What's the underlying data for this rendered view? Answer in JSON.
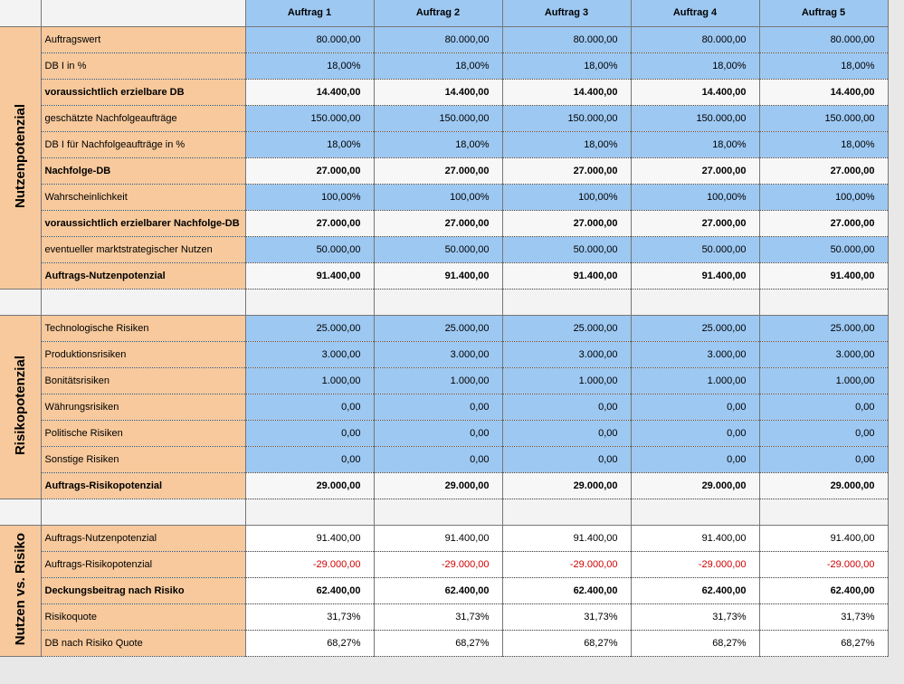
{
  "header": {
    "columns": [
      "Auftrag 1",
      "Auftrag 2",
      "Auftrag 3",
      "Auftrag 4",
      "Auftrag 5"
    ],
    "fill": "#9dc8f2"
  },
  "sections": [
    {
      "title": "Nutzenpotenzial",
      "rows": [
        {
          "label": "Auftragswert",
          "values": [
            "80.000,00",
            "80.000,00",
            "80.000,00",
            "80.000,00",
            "80.000,00"
          ],
          "fill": "#9dc8f2"
        },
        {
          "label": "DB I in %",
          "values": [
            "18,00%",
            "18,00%",
            "18,00%",
            "18,00%",
            "18,00%"
          ],
          "fill": "#9dc8f2"
        },
        {
          "label": "voraussichtlich erzielbare DB",
          "values": [
            "14.400,00",
            "14.400,00",
            "14.400,00",
            "14.400,00",
            "14.400,00"
          ],
          "fill": "#f7f7f7",
          "bold": true
        },
        {
          "label": "geschätzte Nachfolgeaufträge",
          "values": [
            "150.000,00",
            "150.000,00",
            "150.000,00",
            "150.000,00",
            "150.000,00"
          ],
          "fill": "#9dc8f2"
        },
        {
          "label": "DB I für Nachfolgeaufträge in %",
          "values": [
            "18,00%",
            "18,00%",
            "18,00%",
            "18,00%",
            "18,00%"
          ],
          "fill": "#9dc8f2"
        },
        {
          "label": "Nachfolge-DB",
          "values": [
            "27.000,00",
            "27.000,00",
            "27.000,00",
            "27.000,00",
            "27.000,00"
          ],
          "fill": "#f7f7f7",
          "bold": true
        },
        {
          "label": "Wahrscheinlichkeit",
          "values": [
            "100,00%",
            "100,00%",
            "100,00%",
            "100,00%",
            "100,00%"
          ],
          "fill": "#9dc8f2"
        },
        {
          "label": "voraussichtlich erzielbarer Nachfolge-DB",
          "values": [
            "27.000,00",
            "27.000,00",
            "27.000,00",
            "27.000,00",
            "27.000,00"
          ],
          "fill": "#f7f7f7",
          "bold": true
        },
        {
          "label": "eventueller marktstrategischer Nutzen",
          "values": [
            "50.000,00",
            "50.000,00",
            "50.000,00",
            "50.000,00",
            "50.000,00"
          ],
          "fill": "#9dc8f2"
        },
        {
          "label": "Auftrags-Nutzenpotenzial",
          "values": [
            "91.400,00",
            "91.400,00",
            "91.400,00",
            "91.400,00",
            "91.400,00"
          ],
          "fill": "#f7f7f7",
          "bold": true
        }
      ]
    },
    {
      "title": "Risikopotenzial",
      "rows": [
        {
          "label": "Technologische Risiken",
          "values": [
            "25.000,00",
            "25.000,00",
            "25.000,00",
            "25.000,00",
            "25.000,00"
          ],
          "fill": "#9dc8f2"
        },
        {
          "label": "Produktionsrisiken",
          "values": [
            "3.000,00",
            "3.000,00",
            "3.000,00",
            "3.000,00",
            "3.000,00"
          ],
          "fill": "#9dc8f2"
        },
        {
          "label": "Bonitätsrisiken",
          "values": [
            "1.000,00",
            "1.000,00",
            "1.000,00",
            "1.000,00",
            "1.000,00"
          ],
          "fill": "#9dc8f2"
        },
        {
          "label": "Währungsrisiken",
          "values": [
            "0,00",
            "0,00",
            "0,00",
            "0,00",
            "0,00"
          ],
          "fill": "#9dc8f2"
        },
        {
          "label": "Politische Risiken",
          "values": [
            "0,00",
            "0,00",
            "0,00",
            "0,00",
            "0,00"
          ],
          "fill": "#9dc8f2"
        },
        {
          "label": "Sonstige Risiken",
          "values": [
            "0,00",
            "0,00",
            "0,00",
            "0,00",
            "0,00"
          ],
          "fill": "#9dc8f2"
        },
        {
          "label": "Auftrags-Risikopotenzial",
          "values": [
            "29.000,00",
            "29.000,00",
            "29.000,00",
            "29.000,00",
            "29.000,00"
          ],
          "fill": "#f7f7f7",
          "bold": true
        }
      ]
    },
    {
      "title": "Nutzen vs. Risiko",
      "rows": [
        {
          "label": "Auftrags-Nutzenpotenzial",
          "values": [
            "91.400,00",
            "91.400,00",
            "91.400,00",
            "91.400,00",
            "91.400,00"
          ],
          "fill": "#ffffff"
        },
        {
          "label": "Auftrags-Risikopotenzial",
          "values": [
            "-29.000,00",
            "-29.000,00",
            "-29.000,00",
            "-29.000,00",
            "-29.000,00"
          ],
          "fill": "#ffffff",
          "color": "#d00000"
        },
        {
          "label": "Deckungsbeitrag nach Risiko",
          "values": [
            "62.400,00",
            "62.400,00",
            "62.400,00",
            "62.400,00",
            "62.400,00"
          ],
          "fill": "#ffffff",
          "bold": true
        },
        {
          "label": "Risikoquote",
          "values": [
            "31,73%",
            "31,73%",
            "31,73%",
            "31,73%",
            "31,73%"
          ],
          "fill": "#ffffff"
        },
        {
          "label": "DB nach Risiko Quote",
          "values": [
            "68,27%",
            "68,27%",
            "68,27%",
            "68,27%",
            "68,27%"
          ],
          "fill": "#ffffff"
        }
      ]
    }
  ],
  "section_fill": "#f7c99c"
}
